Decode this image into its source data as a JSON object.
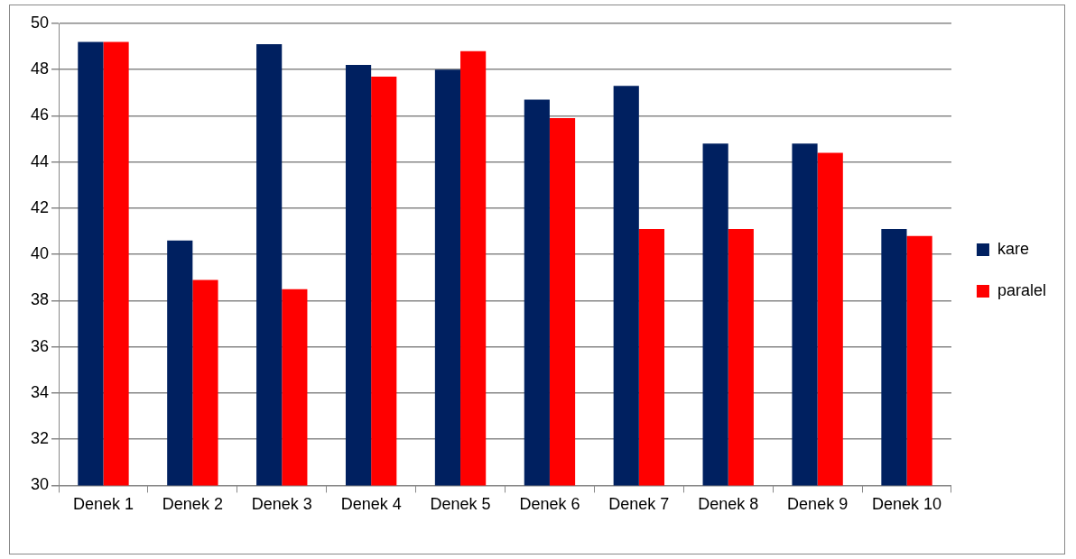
{
  "chart_data": {
    "type": "bar",
    "categories": [
      "Denek 1",
      "Denek 2",
      "Denek 3",
      "Denek 4",
      "Denek 5",
      "Denek 6",
      "Denek 7",
      "Denek 8",
      "Denek 9",
      "Denek 10"
    ],
    "series": [
      {
        "name": "kare",
        "color": "#002060",
        "values": [
          49.2,
          40.6,
          49.1,
          48.2,
          48.0,
          46.7,
          47.3,
          44.8,
          44.8,
          41.1
        ]
      },
      {
        "name": "paralel",
        "color": "#ff0000",
        "values": [
          49.2,
          38.9,
          38.5,
          47.7,
          48.8,
          45.9,
          41.1,
          41.1,
          44.4,
          40.8
        ]
      }
    ],
    "ylim": [
      30,
      50
    ],
    "yticks": [
      30,
      32,
      34,
      36,
      38,
      40,
      42,
      44,
      46,
      48,
      50
    ],
    "grid": "y",
    "legend": "right"
  }
}
